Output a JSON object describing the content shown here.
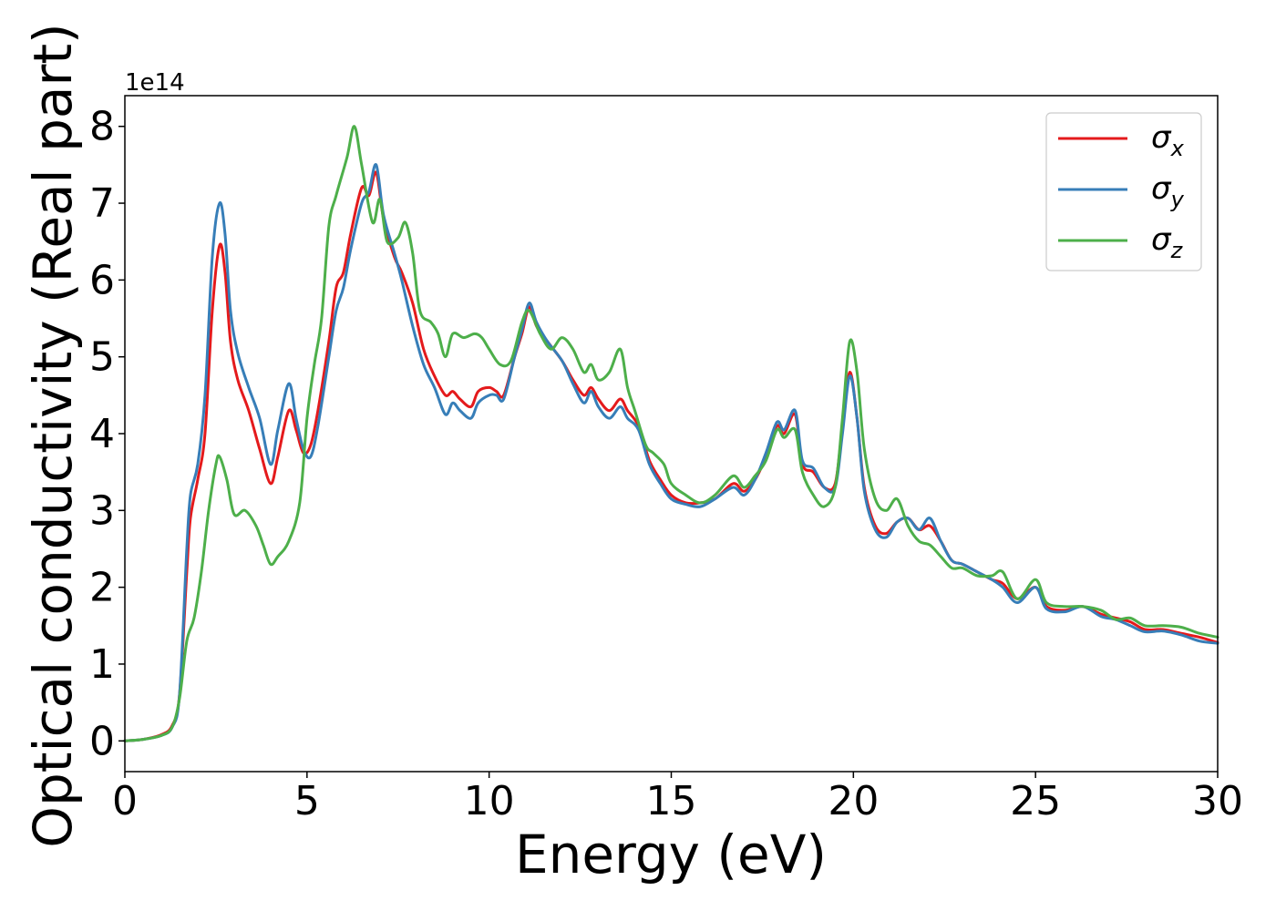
{
  "chart_data": {
    "type": "line",
    "xlabel": "Energy (eV)",
    "ylabel": "Optical conductivity (Real part)",
    "y_offset_label": "1e14",
    "xlim": [
      0,
      30
    ],
    "ylim": [
      -0.4,
      8.4
    ],
    "x_ticks": [
      0,
      5,
      10,
      15,
      20,
      25,
      30
    ],
    "y_ticks": [
      0,
      1,
      2,
      3,
      4,
      5,
      6,
      7,
      8
    ],
    "grid": false,
    "legend_position": "top-right",
    "series": [
      {
        "name": "σ_x",
        "symbol": "σ",
        "subscript": "x",
        "color": "#e41a1c",
        "points": [
          [
            0,
            0
          ],
          [
            0.5,
            0.02
          ],
          [
            1.0,
            0.08
          ],
          [
            1.3,
            0.2
          ],
          [
            1.5,
            0.6
          ],
          [
            1.7,
            2.2
          ],
          [
            1.8,
            2.9
          ],
          [
            2.0,
            3.4
          ],
          [
            2.2,
            4.0
          ],
          [
            2.4,
            5.6
          ],
          [
            2.6,
            6.45
          ],
          [
            2.75,
            6.1
          ],
          [
            2.9,
            5.2
          ],
          [
            3.1,
            4.7
          ],
          [
            3.4,
            4.3
          ],
          [
            3.7,
            3.8
          ],
          [
            4.0,
            3.35
          ],
          [
            4.2,
            3.7
          ],
          [
            4.5,
            4.3
          ],
          [
            4.7,
            4.05
          ],
          [
            4.9,
            3.75
          ],
          [
            5.1,
            3.85
          ],
          [
            5.3,
            4.3
          ],
          [
            5.6,
            5.2
          ],
          [
            5.8,
            5.9
          ],
          [
            6.0,
            6.1
          ],
          [
            6.2,
            6.6
          ],
          [
            6.5,
            7.2
          ],
          [
            6.7,
            7.1
          ],
          [
            6.9,
            7.4
          ],
          [
            7.1,
            6.8
          ],
          [
            7.4,
            6.3
          ],
          [
            7.6,
            6.1
          ],
          [
            7.9,
            5.7
          ],
          [
            8.2,
            5.1
          ],
          [
            8.5,
            4.75
          ],
          [
            8.8,
            4.5
          ],
          [
            9.0,
            4.55
          ],
          [
            9.2,
            4.45
          ],
          [
            9.5,
            4.35
          ],
          [
            9.7,
            4.55
          ],
          [
            10.0,
            4.6
          ],
          [
            10.2,
            4.55
          ],
          [
            10.4,
            4.5
          ],
          [
            10.7,
            5.0
          ],
          [
            10.9,
            5.3
          ],
          [
            11.1,
            5.65
          ],
          [
            11.3,
            5.4
          ],
          [
            11.6,
            5.2
          ],
          [
            12.0,
            4.95
          ],
          [
            12.3,
            4.7
          ],
          [
            12.6,
            4.5
          ],
          [
            12.8,
            4.6
          ],
          [
            13.0,
            4.45
          ],
          [
            13.3,
            4.3
          ],
          [
            13.6,
            4.45
          ],
          [
            13.8,
            4.3
          ],
          [
            14.1,
            4.1
          ],
          [
            14.4,
            3.65
          ],
          [
            14.7,
            3.4
          ],
          [
            15.0,
            3.2
          ],
          [
            15.4,
            3.1
          ],
          [
            15.8,
            3.1
          ],
          [
            16.2,
            3.15
          ],
          [
            16.7,
            3.35
          ],
          [
            17.0,
            3.25
          ],
          [
            17.3,
            3.4
          ],
          [
            17.6,
            3.7
          ],
          [
            17.9,
            4.1
          ],
          [
            18.1,
            4.0
          ],
          [
            18.4,
            4.25
          ],
          [
            18.6,
            3.6
          ],
          [
            18.9,
            3.5
          ],
          [
            19.2,
            3.3
          ],
          [
            19.5,
            3.35
          ],
          [
            19.7,
            4.1
          ],
          [
            19.9,
            4.8
          ],
          [
            20.1,
            4.2
          ],
          [
            20.3,
            3.3
          ],
          [
            20.6,
            2.8
          ],
          [
            20.9,
            2.7
          ],
          [
            21.2,
            2.85
          ],
          [
            21.5,
            2.9
          ],
          [
            21.8,
            2.75
          ],
          [
            22.1,
            2.8
          ],
          [
            22.4,
            2.6
          ],
          [
            22.7,
            2.35
          ],
          [
            23.0,
            2.3
          ],
          [
            23.4,
            2.2
          ],
          [
            23.8,
            2.1
          ],
          [
            24.1,
            2.05
          ],
          [
            24.5,
            1.85
          ],
          [
            25.0,
            2.0
          ],
          [
            25.3,
            1.75
          ],
          [
            25.8,
            1.7
          ],
          [
            26.3,
            1.75
          ],
          [
            26.8,
            1.65
          ],
          [
            27.2,
            1.6
          ],
          [
            27.6,
            1.55
          ],
          [
            28.0,
            1.45
          ],
          [
            28.5,
            1.45
          ],
          [
            29.0,
            1.4
          ],
          [
            29.5,
            1.35
          ],
          [
            30.0,
            1.28
          ]
        ]
      },
      {
        "name": "σ_y",
        "symbol": "σ",
        "subscript": "y",
        "color": "#377eb8",
        "points": [
          [
            0,
            0
          ],
          [
            0.5,
            0.02
          ],
          [
            1.0,
            0.07
          ],
          [
            1.3,
            0.18
          ],
          [
            1.5,
            0.6
          ],
          [
            1.7,
            2.5
          ],
          [
            1.8,
            3.2
          ],
          [
            2.0,
            3.6
          ],
          [
            2.2,
            4.5
          ],
          [
            2.4,
            6.3
          ],
          [
            2.6,
            7.0
          ],
          [
            2.75,
            6.6
          ],
          [
            2.9,
            5.6
          ],
          [
            3.1,
            5.05
          ],
          [
            3.4,
            4.6
          ],
          [
            3.7,
            4.2
          ],
          [
            4.0,
            3.6
          ],
          [
            4.2,
            4.05
          ],
          [
            4.5,
            4.65
          ],
          [
            4.7,
            4.2
          ],
          [
            4.9,
            3.8
          ],
          [
            5.1,
            3.7
          ],
          [
            5.3,
            4.1
          ],
          [
            5.6,
            5.0
          ],
          [
            5.8,
            5.6
          ],
          [
            6.0,
            5.9
          ],
          [
            6.2,
            6.4
          ],
          [
            6.5,
            7.0
          ],
          [
            6.7,
            7.15
          ],
          [
            6.9,
            7.5
          ],
          [
            7.1,
            6.85
          ],
          [
            7.4,
            6.35
          ],
          [
            7.6,
            6.0
          ],
          [
            7.9,
            5.4
          ],
          [
            8.2,
            4.9
          ],
          [
            8.5,
            4.6
          ],
          [
            8.8,
            4.25
          ],
          [
            9.0,
            4.4
          ],
          [
            9.2,
            4.3
          ],
          [
            9.5,
            4.2
          ],
          [
            9.7,
            4.4
          ],
          [
            10.0,
            4.5
          ],
          [
            10.2,
            4.5
          ],
          [
            10.4,
            4.45
          ],
          [
            10.7,
            5.0
          ],
          [
            10.9,
            5.35
          ],
          [
            11.1,
            5.7
          ],
          [
            11.3,
            5.45
          ],
          [
            11.6,
            5.2
          ],
          [
            12.0,
            4.95
          ],
          [
            12.3,
            4.65
          ],
          [
            12.6,
            4.4
          ],
          [
            12.8,
            4.55
          ],
          [
            13.0,
            4.35
          ],
          [
            13.3,
            4.2
          ],
          [
            13.6,
            4.35
          ],
          [
            13.8,
            4.2
          ],
          [
            14.1,
            4.05
          ],
          [
            14.4,
            3.6
          ],
          [
            14.7,
            3.35
          ],
          [
            15.0,
            3.15
          ],
          [
            15.4,
            3.08
          ],
          [
            15.8,
            3.05
          ],
          [
            16.2,
            3.15
          ],
          [
            16.7,
            3.3
          ],
          [
            17.0,
            3.2
          ],
          [
            17.3,
            3.4
          ],
          [
            17.6,
            3.75
          ],
          [
            17.9,
            4.15
          ],
          [
            18.1,
            4.05
          ],
          [
            18.4,
            4.3
          ],
          [
            18.6,
            3.65
          ],
          [
            18.9,
            3.55
          ],
          [
            19.2,
            3.3
          ],
          [
            19.5,
            3.3
          ],
          [
            19.7,
            4.0
          ],
          [
            19.9,
            4.75
          ],
          [
            20.1,
            4.2
          ],
          [
            20.3,
            3.25
          ],
          [
            20.6,
            2.75
          ],
          [
            20.9,
            2.65
          ],
          [
            21.2,
            2.85
          ],
          [
            21.5,
            2.9
          ],
          [
            21.8,
            2.75
          ],
          [
            22.1,
            2.9
          ],
          [
            22.4,
            2.6
          ],
          [
            22.7,
            2.35
          ],
          [
            23.0,
            2.3
          ],
          [
            23.4,
            2.2
          ],
          [
            23.8,
            2.1
          ],
          [
            24.1,
            2.0
          ],
          [
            24.5,
            1.8
          ],
          [
            25.0,
            2.0
          ],
          [
            25.3,
            1.72
          ],
          [
            25.8,
            1.68
          ],
          [
            26.3,
            1.75
          ],
          [
            26.8,
            1.62
          ],
          [
            27.2,
            1.58
          ],
          [
            27.6,
            1.5
          ],
          [
            28.0,
            1.42
          ],
          [
            28.5,
            1.43
          ],
          [
            29.0,
            1.38
          ],
          [
            29.5,
            1.3
          ],
          [
            30.0,
            1.27
          ]
        ]
      },
      {
        "name": "σ_z",
        "symbol": "σ",
        "subscript": "z",
        "color": "#4daf4a",
        "points": [
          [
            0,
            0
          ],
          [
            0.5,
            0.02
          ],
          [
            1.0,
            0.07
          ],
          [
            1.3,
            0.18
          ],
          [
            1.5,
            0.55
          ],
          [
            1.7,
            1.3
          ],
          [
            1.9,
            1.6
          ],
          [
            2.1,
            2.2
          ],
          [
            2.3,
            3.0
          ],
          [
            2.5,
            3.6
          ],
          [
            2.6,
            3.7
          ],
          [
            2.8,
            3.4
          ],
          [
            3.0,
            2.95
          ],
          [
            3.3,
            3.0
          ],
          [
            3.6,
            2.8
          ],
          [
            3.8,
            2.55
          ],
          [
            4.0,
            2.3
          ],
          [
            4.2,
            2.4
          ],
          [
            4.5,
            2.6
          ],
          [
            4.8,
            3.1
          ],
          [
            5.0,
            4.2
          ],
          [
            5.2,
            4.9
          ],
          [
            5.4,
            5.5
          ],
          [
            5.6,
            6.7
          ],
          [
            5.8,
            7.1
          ],
          [
            6.1,
            7.6
          ],
          [
            6.3,
            8.0
          ],
          [
            6.5,
            7.5
          ],
          [
            6.8,
            6.75
          ],
          [
            7.0,
            7.05
          ],
          [
            7.2,
            6.5
          ],
          [
            7.5,
            6.55
          ],
          [
            7.7,
            6.75
          ],
          [
            7.9,
            6.35
          ],
          [
            8.1,
            5.6
          ],
          [
            8.4,
            5.45
          ],
          [
            8.6,
            5.3
          ],
          [
            8.8,
            5.0
          ],
          [
            9.0,
            5.3
          ],
          [
            9.3,
            5.25
          ],
          [
            9.6,
            5.3
          ],
          [
            9.8,
            5.25
          ],
          [
            10.0,
            5.1
          ],
          [
            10.3,
            4.9
          ],
          [
            10.6,
            4.95
          ],
          [
            10.9,
            5.45
          ],
          [
            11.1,
            5.6
          ],
          [
            11.4,
            5.3
          ],
          [
            11.7,
            5.1
          ],
          [
            12.0,
            5.25
          ],
          [
            12.3,
            5.1
          ],
          [
            12.6,
            4.8
          ],
          [
            12.8,
            4.9
          ],
          [
            13.0,
            4.7
          ],
          [
            13.3,
            4.8
          ],
          [
            13.6,
            5.1
          ],
          [
            13.8,
            4.6
          ],
          [
            14.0,
            4.3
          ],
          [
            14.3,
            3.85
          ],
          [
            14.5,
            3.75
          ],
          [
            14.8,
            3.6
          ],
          [
            15.0,
            3.35
          ],
          [
            15.4,
            3.2
          ],
          [
            15.8,
            3.1
          ],
          [
            16.2,
            3.2
          ],
          [
            16.7,
            3.45
          ],
          [
            17.0,
            3.3
          ],
          [
            17.3,
            3.45
          ],
          [
            17.6,
            3.65
          ],
          [
            17.9,
            4.05
          ],
          [
            18.1,
            3.95
          ],
          [
            18.4,
            4.05
          ],
          [
            18.6,
            3.5
          ],
          [
            18.9,
            3.2
          ],
          [
            19.2,
            3.05
          ],
          [
            19.5,
            3.3
          ],
          [
            19.7,
            4.2
          ],
          [
            19.9,
            5.2
          ],
          [
            20.1,
            4.8
          ],
          [
            20.3,
            3.8
          ],
          [
            20.6,
            3.15
          ],
          [
            20.9,
            3.0
          ],
          [
            21.2,
            3.15
          ],
          [
            21.5,
            2.8
          ],
          [
            21.8,
            2.6
          ],
          [
            22.1,
            2.55
          ],
          [
            22.4,
            2.4
          ],
          [
            22.7,
            2.25
          ],
          [
            23.0,
            2.25
          ],
          [
            23.4,
            2.15
          ],
          [
            23.8,
            2.15
          ],
          [
            24.1,
            2.2
          ],
          [
            24.5,
            1.85
          ],
          [
            25.0,
            2.1
          ],
          [
            25.3,
            1.8
          ],
          [
            25.8,
            1.75
          ],
          [
            26.3,
            1.75
          ],
          [
            26.8,
            1.7
          ],
          [
            27.2,
            1.58
          ],
          [
            27.6,
            1.6
          ],
          [
            28.0,
            1.5
          ],
          [
            28.5,
            1.5
          ],
          [
            29.0,
            1.48
          ],
          [
            29.5,
            1.4
          ],
          [
            30.0,
            1.35
          ]
        ]
      }
    ]
  }
}
